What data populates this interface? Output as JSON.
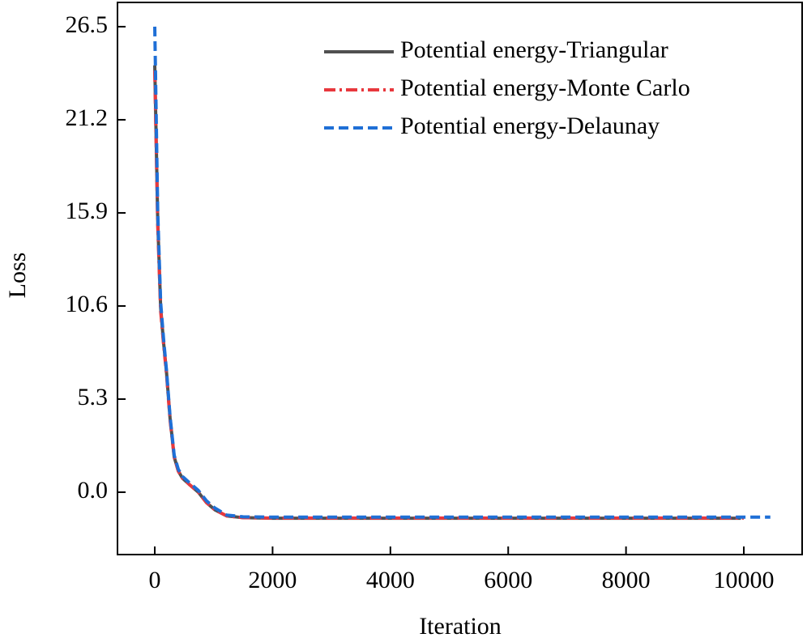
{
  "chart_data": {
    "type": "line",
    "x_label": "Iteration",
    "y_label": "Loss",
    "xlim": [
      -633,
      10990
    ],
    "ylim": [
      -3.55,
      27.88
    ],
    "xticks": [
      0,
      2000,
      4000,
      6000,
      8000,
      10000
    ],
    "yticks": [
      {
        "value": 0,
        "label": "0.0"
      },
      5.3,
      10.6,
      15.9,
      21.2,
      26.5
    ],
    "legend": "upper right",
    "series": [
      {
        "name": "Potential energy-Triangular",
        "color": "#505050",
        "dash": "solid",
        "x": [
          0,
          50,
          100,
          150,
          200,
          260,
          330,
          400,
          470,
          600,
          740,
          880,
          1020,
          1220,
          1500,
          2000,
          4000,
          6000,
          8000,
          9950
        ],
        "values": [
          24.3,
          15.5,
          10.5,
          8.5,
          6.8,
          4.2,
          2.0,
          1.2,
          0.8,
          0.4,
          0.0,
          -0.6,
          -1.0,
          -1.35,
          -1.45,
          -1.48,
          -1.48,
          -1.48,
          -1.48,
          -1.48
        ]
      },
      {
        "name": "Potential energy-Monte Carlo",
        "color": "#e8383d",
        "dash": "dashdot",
        "x": [
          0,
          50,
          100,
          150,
          200,
          260,
          330,
          400,
          470,
          600,
          740,
          880,
          1020,
          1220,
          1500,
          2000,
          4000,
          6000,
          8000,
          10000
        ],
        "values": [
          24.0,
          15.2,
          10.3,
          8.4,
          6.7,
          4.1,
          2.0,
          1.2,
          0.8,
          0.4,
          0.0,
          -0.6,
          -1.0,
          -1.35,
          -1.45,
          -1.47,
          -1.47,
          -1.47,
          -1.47,
          -1.47
        ]
      },
      {
        "name": "Potential energy-Delaunay",
        "color": "#1f6fd6",
        "dash": "dashed",
        "x": [
          0,
          50,
          100,
          150,
          200,
          260,
          330,
          400,
          470,
          600,
          740,
          880,
          1020,
          1220,
          1500,
          2000,
          4000,
          6000,
          8000,
          10450
        ],
        "values": [
          26.5,
          16.0,
          10.8,
          8.7,
          6.9,
          4.3,
          2.1,
          1.3,
          0.9,
          0.5,
          0.1,
          -0.5,
          -0.9,
          -1.3,
          -1.4,
          -1.42,
          -1.42,
          -1.42,
          -1.42,
          -1.42
        ]
      }
    ]
  }
}
